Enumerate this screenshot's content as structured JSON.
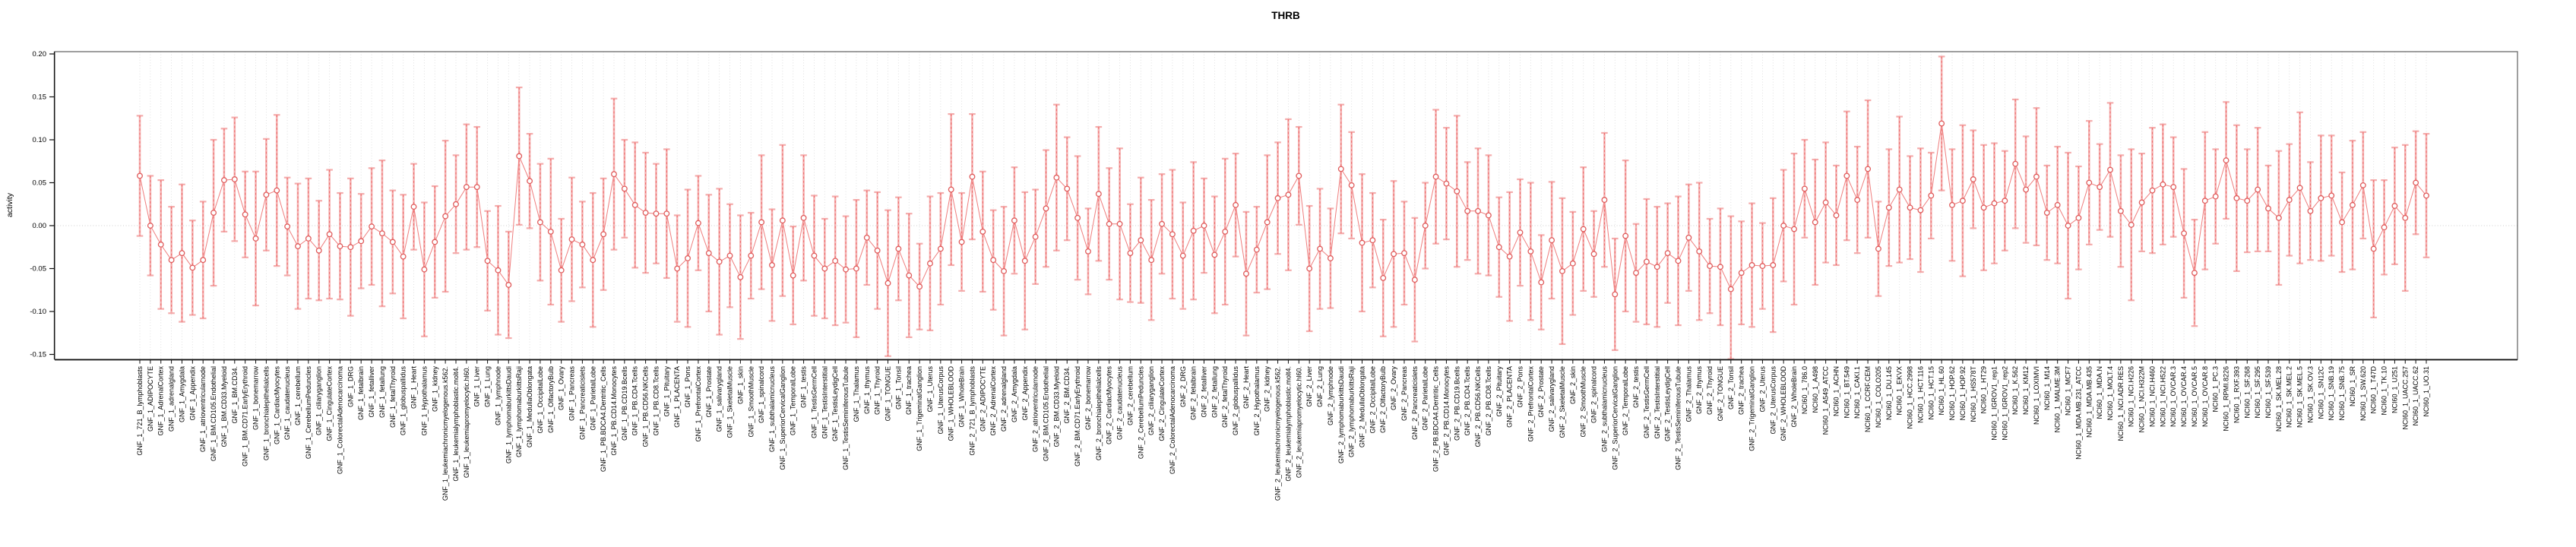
{
  "figure": {
    "title": "THRB",
    "y_axis_label": "activity"
  },
  "chart_data": {
    "type": "scatter",
    "title": "THRB",
    "xlabel": "",
    "ylabel": "activity",
    "ylim": [
      -0.156,
      0.203
    ],
    "yticks": [
      0.2,
      0.15,
      0.1,
      0.05,
      0.0,
      -0.05,
      -0.1,
      -0.15
    ],
    "grid": "dotted vertical gridline at every category; dotted horizontal line at y=0",
    "legend_position": "none",
    "point_style": "open circle means with vertical error bars (solid salmon bar with end caps plus dashed red bar), consecutive means connected by a thin red line",
    "colors": {
      "error_bar": "#f3a4a4",
      "error_bar_dash": "#ee6a6a",
      "connecting_line": "#ef7e7e",
      "marker_stroke": "#e05c5c",
      "marker_fill": "#ffffff",
      "gridline": "#dcdcdc",
      "zero_line": "#cfcfcf",
      "box": "#6b6b6b",
      "axis": "#111111",
      "text": "#000000"
    },
    "categories": [
      "GNF_1_721_B_lymphoblasts",
      "GNF_1_ADIPOCYTE",
      "GNF_1_AdrenalCortex",
      "GNF_1_adrenalgland",
      "GNF_1_Amygdala",
      "GNF_1_Appendix",
      "GNF_1_atrioventricularnode",
      "GNF_1_BM.CD105.Endothelial",
      "GNF_1_BM.CD33.Myeloid",
      "GNF_1_BM.CD34.",
      "GNF_1_BM.CD71.EarlyErythroid",
      "GNF_1_bonemarrow",
      "GNF_1_bronchialepithelialcells",
      "GNF_1_CardiacMyocytes",
      "GNF_1_caudatenucleus",
      "GNF_1_cerebellum",
      "GNF_1_CerebellumPeduncles",
      "GNF_1_ciliaryganglion",
      "GNF_1_CingulateCortex",
      "GNF_1_ColorectalAdenocarcinoma",
      "GNF_1_DRG",
      "GNF_1_fetalbrain",
      "GNF_1_fetalliver",
      "GNF_1_fetallung",
      "GNF_1_fetalThyroid",
      "GNF_1_globuspallidus",
      "GNF_1_Heart",
      "GNF_1_Hypothalamus",
      "GNF_1_kidney",
      "GNF_1_leukemiachronicmyelogenous.k562.",
      "GNF_1_leukemialymphoblastic.molt4.",
      "GNF_1_leukemiapromyelocytic.hl60.",
      "GNF_1_Liver",
      "GNF_1_Lung",
      "GNF_1_lymphnode",
      "GNF_1_lymphomaburkittsDaudi",
      "GNF_1_lymphomaburkittsRaji",
      "GNF_1_MedullaOblongata",
      "GNF_1_OccipitalLobe",
      "GNF_1_OlfactoryBulb",
      "GNF_1_Ovary",
      "GNF_1_Pancreas",
      "GNF_1_Pancreaticislets",
      "GNF_1_ParietalLobe",
      "GNF_1_PB.BDCA4.Dentritic_Cells",
      "GNF_1_PB.CD14.Monocytes",
      "GNF_1_PB.CD19.Bcells",
      "GNF_1_PB.CD4.Tcells",
      "GNF_1_PB.CD56.NKCells",
      "GNF_1_PB.CD8.Tcells",
      "GNF_1_Pituitary",
      "GNF_1_PLACENTA",
      "GNF_1_Pons",
      "GNF_1_PrefrontalCortex",
      "GNF_1_Prostate",
      "GNF_1_salivarygland",
      "GNF_1_SkeletalMuscle",
      "GNF_1_skin",
      "GNF_1_SmoothMuscle",
      "GNF_1_spinalcord",
      "GNF_1_subthalamicnucleus",
      "GNF_1_SuperiorCervicalGanglion",
      "GNF_1_TemporalLobe",
      "GNF_1_testis",
      "GNF_1_TestisGermCell",
      "GNF_1_TestisInterstitial",
      "GNF_1_TestisLeydigCell",
      "GNF_1_TestisSeminiferousTubule",
      "GNF_1_Thalamus",
      "GNF_1_thymus",
      "GNF_1_Thyroid",
      "GNF_1_TONGUE",
      "GNF_1_Tonsil",
      "GNF_1_trachea",
      "GNF_1_TrigeminalGanglion",
      "GNF_1_Uterus",
      "GNF_1_UterusCorpus",
      "GNF_1_WHOLEBLOOD",
      "GNF_1_WholeBrain",
      "GNF_2_721_B_lymphoblasts",
      "GNF_2_ADIPOCYTE",
      "GNF_2_AdrenalCortex",
      "GNF_2_adrenalgland",
      "GNF_2_Amygdala",
      "GNF_2_Appendix",
      "GNF_2_atrioventricularnode",
      "GNF_2_BM.CD105.Endothelial",
      "GNF_2_BM.CD33.Myeloid",
      "GNF_2_BM.CD34.",
      "GNF_2_BM.CD71.EarlyErythroid",
      "GNF_2_bonemarrow",
      "GNF_2_bronchialepithelialcells",
      "GNF_2_CardiacMyocytes",
      "GNF_2_caudatenucleus",
      "GNF_2_cerebellum",
      "GNF_2_CerebellumPeduncles",
      "GNF_2_ciliaryganglion",
      "GNF_2_CingulateCortex",
      "GNF_2_ColorectalAdenocarcinoma",
      "GNF_2_DRG",
      "GNF_2_fetalbrain",
      "GNF_2_fetalliver",
      "GNF_2_fetallung",
      "GNF_2_fetalThyroid",
      "GNF_2_globuspallidus",
      "GNF_2_Heart",
      "GNF_2_Hypothalamus",
      "GNF_2_kidney",
      "GNF_2_leukemiachronicmyelogenous.k562.",
      "GNF_2_leukemialymphoblastic.molt4.",
      "GNF_2_leukemiapromyelocytic.hl60.",
      "GNF_2_Liver",
      "GNF_2_Lung",
      "GNF_2_lymphnode",
      "GNF_2_lymphomaburkittsDaudi",
      "GNF_2_lymphomaburkittsRaji",
      "GNF_2_MedullaOblongata",
      "GNF_2_OccipitalLobe",
      "GNF_2_OlfactoryBulb",
      "GNF_2_Ovary",
      "GNF_2_Pancreas",
      "GNF_2_Pancreaticislets",
      "GNF_2_ParietalLobe",
      "GNF_2_PB.BDCA4.Dentritic_Cells",
      "GNF_2_PB.CD14.Monocytes",
      "GNF_2_PB.CD19.Bcells",
      "GNF_2_PB.CD4.Tcells",
      "GNF_2_PB.CD56.NKCells",
      "GNF_2_PB.CD8.Tcells",
      "GNF_2_Pituitary",
      "GNF_2_PLACENTA",
      "GNF_2_Pons",
      "GNF_2_PrefrontalCortex",
      "GNF_2_Prostate",
      "GNF_2_salivarygland",
      "GNF_2_SkeletalMuscle",
      "GNF_2_skin",
      "GNF_2_SmoothMuscle",
      "GNF_2_spinalcord",
      "GNF_2_subthalamicnucleus",
      "GNF_2_SuperiorCervicalGanglion",
      "GNF_2_TemporalLobe",
      "GNF_2_testis",
      "GNF_2_TestisGermCell",
      "GNF_2_TestisInterstitial",
      "GNF_2_TestisLeydigCell",
      "GNF_2_TestisSeminiferousTubule",
      "GNF_2_Thalamus",
      "GNF_2_thymus",
      "GNF_2_Thyroid",
      "GNF_2_TONGUE",
      "GNF_2_Tonsil",
      "GNF_2_trachea",
      "GNF_2_TrigeminalGanglion",
      "GNF_2_Uterus",
      "GNF_2_UterusCorpus",
      "GNF_2_WHOLEBLOOD",
      "GNF_2_WholeBrain",
      "NCI60_1_786.0",
      "NCI60_1_A498",
      "NCI60_1_A549_ATCC",
      "NCI60_1_ACHN",
      "NCI60_1_BT.549",
      "NCI60_1_CAKI.1",
      "NCI60_1_CCRF.CEM",
      "NCI60_1_COLO205",
      "NCI60_1_DU.145",
      "NCI60_1_EKVX",
      "NCI60_1_HCC.2998",
      "NCI60_1_HCT.116",
      "NCI60_1_HCT.15",
      "NCI60_1_HL.60",
      "NCI60_1_HOP.62",
      "NCI60_1_HOP.92",
      "NCI60_1_HS578T",
      "NCI60_1_HT29",
      "NCI60_1_IGROV1_rep1",
      "NCI60_1_IGROV1_rep2",
      "NCI60_1_K.562",
      "NCI60_1_KM12",
      "NCI60_1_LOXIMVI",
      "NCI60_1_M14",
      "NCI60_1_MALME.3M",
      "NCI60_1_MCF7",
      "NCI60_1_MDA.MB.231_ATCC",
      "NCI60_1_MDA.MB.435",
      "NCI60_1_MDA.N",
      "NCI60_1_MOLT.4",
      "NCI60_1_NCI.ADR.RES",
      "NCI60_1_NCI.H226",
      "NCI60_1_NCI.H322M",
      "NCI60_1_NCI.H460",
      "NCI60_1_NCI.H522",
      "NCI60_1_OVCAR.3",
      "NCI60_1_OVCAR.4",
      "NCI60_1_OVCAR.5",
      "NCI60_1_OVCAR.8",
      "NCI60_1_PC.3",
      "NCI60_1_RPMI.8226",
      "NCI60_1_RXF.393",
      "NCI60_1_SF.268",
      "NCI60_1_SF.295",
      "NCI60_1_SF.539",
      "NCI60_1_SK.MEL.28",
      "NCI60_1_SK.MEL.2",
      "NCI60_1_SK.MEL.5",
      "NCI60_1_SK.OV.3",
      "NCI60_1_SN12C",
      "NCI60_1_SNB.19",
      "NCI60_1_SNB.75",
      "NCI60_1_SR",
      "NCI60_1_SW.620",
      "NCI60_1_T47D",
      "NCI60_1_TK.10",
      "NCI60_1_U251",
      "NCI60_1_UACC.257",
      "NCI60_1_UACC.62",
      "NCI60_1_UO.31"
    ],
    "values": [
      0.058,
      0.0,
      -0.022,
      -0.04,
      -0.032,
      -0.049,
      -0.04,
      0.015,
      0.053,
      0.054,
      0.013,
      -0.015,
      0.036,
      0.041,
      -0.001,
      -0.024,
      -0.015,
      -0.029,
      -0.01,
      -0.024,
      -0.025,
      -0.018,
      -0.001,
      -0.009,
      -0.019,
      -0.036,
      0.022,
      -0.051,
      -0.019,
      0.011,
      0.025,
      0.045,
      0.045,
      -0.041,
      -0.052,
      -0.069,
      0.081,
      0.052,
      0.004,
      -0.007,
      -0.052,
      -0.016,
      -0.022,
      -0.04,
      -0.01,
      0.06,
      0.043,
      0.024,
      0.015,
      0.014,
      0.014,
      -0.05,
      -0.038,
      0.003,
      -0.032,
      -0.042,
      -0.035,
      -0.06,
      -0.035,
      0.004,
      -0.046,
      0.006,
      -0.058,
      0.009,
      -0.035,
      -0.05,
      -0.041,
      -0.051,
      -0.05,
      -0.014,
      -0.029,
      -0.067,
      -0.027,
      -0.058,
      -0.071,
      -0.044,
      -0.027,
      0.042,
      -0.019,
      0.057,
      -0.007,
      -0.04,
      -0.053,
      0.006,
      -0.041,
      -0.013,
      0.02,
      0.056,
      0.043,
      0.009,
      -0.03,
      0.037,
      0.002,
      0.002,
      -0.032,
      -0.017,
      -0.04,
      0.002,
      -0.01,
      -0.035,
      -0.006,
      0.0,
      -0.034,
      -0.007,
      0.024,
      -0.056,
      -0.028,
      0.004,
      0.032,
      0.036,
      0.058,
      -0.05,
      -0.027,
      -0.038,
      0.066,
      0.047,
      -0.02,
      -0.017,
      -0.061,
      -0.033,
      -0.032,
      -0.063,
      0.0,
      0.057,
      0.049,
      0.04,
      0.017,
      0.017,
      0.012,
      -0.025,
      -0.036,
      -0.008,
      -0.03,
      -0.066,
      -0.017,
      -0.053,
      -0.044,
      -0.004,
      -0.033,
      0.03,
      -0.08,
      -0.012,
      -0.055,
      -0.042,
      -0.048,
      -0.032,
      -0.041,
      -0.014,
      -0.03,
      -0.047,
      -0.048,
      -0.074,
      -0.055,
      -0.046,
      -0.047,
      -0.046,
      0.0,
      -0.004,
      0.043,
      0.004,
      0.027,
      0.012,
      0.058,
      0.03,
      0.066,
      -0.027,
      0.021,
      0.042,
      0.021,
      0.018,
      0.035,
      0.119,
      0.024,
      0.029,
      0.054,
      0.021,
      0.026,
      0.029,
      0.072,
      0.042,
      0.057,
      0.015,
      0.024,
      0.0,
      0.009,
      0.05,
      0.045,
      0.065,
      0.017,
      0.001,
      0.027,
      0.041,
      0.048,
      0.045,
      -0.009,
      -0.055,
      0.029,
      0.034,
      0.076,
      0.032,
      0.029,
      0.042,
      0.02,
      0.009,
      0.03,
      0.044,
      0.017,
      0.032,
      0.035,
      0.004,
      0.024,
      0.047,
      -0.027,
      -0.002,
      0.023,
      0.009,
      0.05,
      0.035
    ],
    "err": [
      0.07,
      0.058,
      0.075,
      0.062,
      0.08,
      0.055,
      0.068,
      0.085,
      0.06,
      0.072,
      0.05,
      0.078,
      0.065,
      0.088,
      0.057,
      0.073,
      0.07,
      0.058,
      0.075,
      0.062,
      0.08,
      0.055,
      0.068,
      0.085,
      0.06,
      0.072,
      0.05,
      0.078,
      0.065,
      0.088,
      0.057,
      0.073,
      0.07,
      0.058,
      0.075,
      0.062,
      0.08,
      0.055,
      0.068,
      0.085,
      0.06,
      0.072,
      0.05,
      0.078,
      0.065,
      0.088,
      0.057,
      0.073,
      0.07,
      0.058,
      0.075,
      0.062,
      0.08,
      0.055,
      0.068,
      0.085,
      0.06,
      0.072,
      0.05,
      0.078,
      0.065,
      0.088,
      0.057,
      0.073,
      0.07,
      0.058,
      0.075,
      0.062,
      0.08,
      0.055,
      0.068,
      0.085,
      0.06,
      0.072,
      0.05,
      0.078,
      0.065,
      0.088,
      0.057,
      0.073,
      0.07,
      0.058,
      0.075,
      0.062,
      0.08,
      0.055,
      0.068,
      0.085,
      0.06,
      0.072,
      0.05,
      0.078,
      0.065,
      0.088,
      0.057,
      0.073,
      0.07,
      0.058,
      0.075,
      0.062,
      0.08,
      0.055,
      0.068,
      0.085,
      0.06,
      0.072,
      0.05,
      0.078,
      0.065,
      0.088,
      0.057,
      0.073,
      0.07,
      0.058,
      0.075,
      0.062,
      0.08,
      0.055,
      0.068,
      0.085,
      0.06,
      0.072,
      0.05,
      0.078,
      0.065,
      0.088,
      0.057,
      0.073,
      0.07,
      0.058,
      0.075,
      0.062,
      0.08,
      0.055,
      0.068,
      0.085,
      0.06,
      0.072,
      0.05,
      0.078,
      0.065,
      0.088,
      0.057,
      0.073,
      0.07,
      0.058,
      0.075,
      0.062,
      0.08,
      0.055,
      0.068,
      0.085,
      0.06,
      0.072,
      0.05,
      0.078,
      0.065,
      0.088,
      0.057,
      0.073,
      0.07,
      0.058,
      0.075,
      0.062,
      0.08,
      0.055,
      0.068,
      0.085,
      0.06,
      0.072,
      0.05,
      0.078,
      0.065,
      0.088,
      0.057,
      0.073,
      0.07,
      0.058,
      0.075,
      0.062,
      0.08,
      0.055,
      0.068,
      0.085,
      0.06,
      0.072,
      0.05,
      0.078,
      0.065,
      0.088,
      0.057,
      0.073,
      0.07,
      0.058,
      0.075,
      0.062,
      0.08,
      0.055,
      0.068,
      0.085,
      0.06,
      0.072,
      0.05,
      0.078,
      0.065,
      0.088,
      0.057,
      0.073,
      0.07,
      0.058,
      0.075,
      0.062,
      0.08,
      0.055,
      0.068,
      0.085,
      0.06,
      0.072
    ]
  }
}
